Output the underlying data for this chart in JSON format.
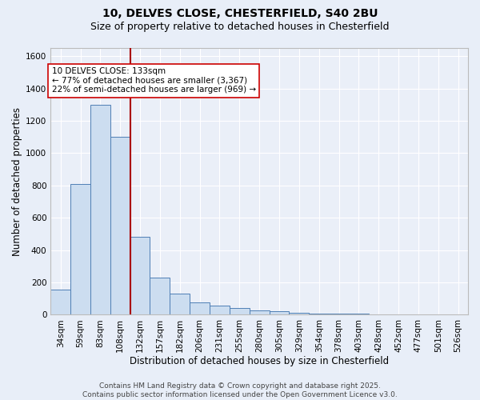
{
  "title_line1": "10, DELVES CLOSE, CHESTERFIELD, S40 2BU",
  "title_line2": "Size of property relative to detached houses in Chesterfield",
  "xlabel": "Distribution of detached houses by size in Chesterfield",
  "ylabel": "Number of detached properties",
  "categories": [
    "34sqm",
    "59sqm",
    "83sqm",
    "108sqm",
    "132sqm",
    "157sqm",
    "182sqm",
    "206sqm",
    "231sqm",
    "255sqm",
    "280sqm",
    "305sqm",
    "329sqm",
    "354sqm",
    "378sqm",
    "403sqm",
    "428sqm",
    "452sqm",
    "477sqm",
    "501sqm",
    "526sqm"
  ],
  "values": [
    155,
    810,
    1300,
    1100,
    480,
    230,
    130,
    75,
    55,
    40,
    28,
    20,
    13,
    9,
    7,
    5,
    4,
    3,
    2,
    2,
    2
  ],
  "bar_color": "#ccddf0",
  "bar_edge_color": "#4f7fb5",
  "bar_width": 1.0,
  "vline_color": "#aa0000",
  "vline_x": 3.5,
  "annotation_title": "10 DELVES CLOSE: 133sqm",
  "annotation_line1": "← 77% of detached houses are smaller (3,367)",
  "annotation_line2": "22% of semi-detached houses are larger (969) →",
  "footer1": "Contains HM Land Registry data © Crown copyright and database right 2025.",
  "footer2": "Contains public sector information licensed under the Open Government Licence v3.0.",
  "ylim": [
    0,
    1650
  ],
  "yticks": [
    0,
    200,
    400,
    600,
    800,
    1000,
    1200,
    1400,
    1600
  ],
  "background_color": "#e8eef8",
  "plot_background": "#eaeff8",
  "grid_color": "#ffffff",
  "title_fontsize": 10,
  "axis_label_fontsize": 8.5,
  "tick_fontsize": 7.5,
  "annotation_fontsize": 7.5,
  "footer_fontsize": 6.5
}
